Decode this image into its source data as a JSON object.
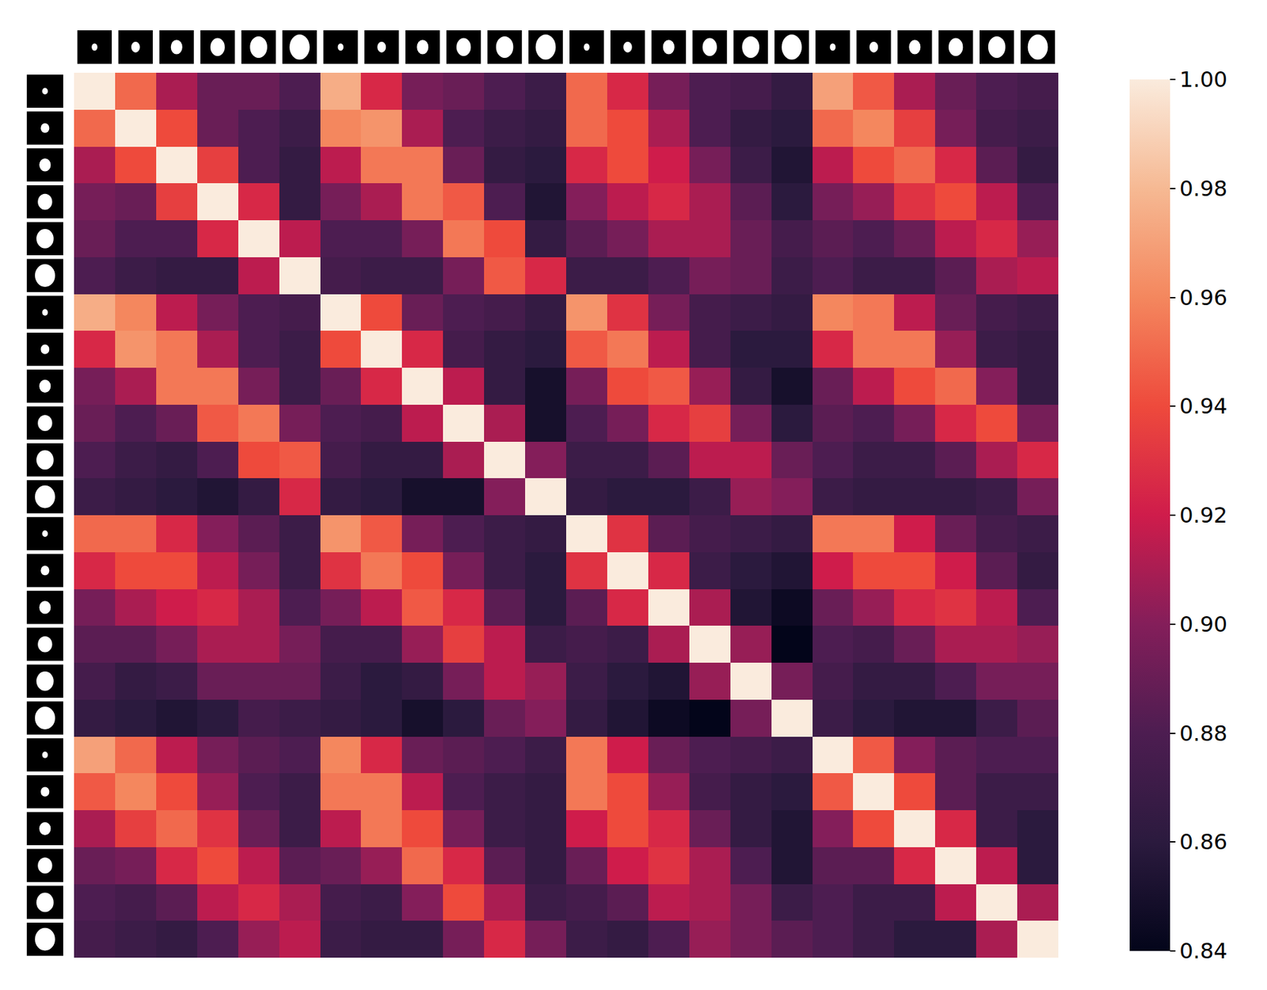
{
  "chart_data": {
    "type": "heatmap",
    "categories": [
      null,
      null,
      null,
      null,
      null,
      null,
      null,
      null,
      null,
      null,
      null,
      null,
      null,
      null,
      null,
      null,
      null,
      null,
      null,
      null,
      null,
      null,
      null,
      null
    ],
    "tick_labels": false,
    "zlim": [
      0.84,
      1.0
    ],
    "colorbar_ticks": [
      0.84,
      0.86,
      0.88,
      0.9,
      0.92,
      0.94,
      0.96,
      0.98,
      1.0
    ],
    "colorbar_tick_labels": [
      "0.84",
      "0.86",
      "0.88",
      "0.90",
      "0.92",
      "0.94",
      "0.96",
      "0.98",
      "1.00"
    ],
    "values": [
      [
        1.0,
        0.95,
        0.91,
        0.89,
        0.89,
        0.88,
        0.975,
        0.925,
        0.895,
        0.89,
        0.88,
        0.87,
        0.95,
        0.925,
        0.895,
        0.88,
        0.875,
        0.865,
        0.97,
        0.945,
        0.91,
        0.89,
        0.88,
        0.875
      ],
      [
        0.95,
        1.0,
        0.94,
        0.89,
        0.88,
        0.87,
        0.96,
        0.965,
        0.91,
        0.88,
        0.87,
        0.865,
        0.95,
        0.94,
        0.91,
        0.88,
        0.865,
        0.86,
        0.95,
        0.96,
        0.935,
        0.895,
        0.875,
        0.87
      ],
      [
        0.91,
        0.94,
        1.0,
        0.935,
        0.88,
        0.865,
        0.915,
        0.955,
        0.955,
        0.89,
        0.865,
        0.86,
        0.925,
        0.94,
        0.92,
        0.895,
        0.87,
        0.855,
        0.915,
        0.94,
        0.95,
        0.925,
        0.885,
        0.865
      ],
      [
        0.895,
        0.89,
        0.935,
        1.0,
        0.925,
        0.865,
        0.895,
        0.91,
        0.955,
        0.945,
        0.88,
        0.855,
        0.9,
        0.915,
        0.925,
        0.91,
        0.885,
        0.86,
        0.895,
        0.905,
        0.93,
        0.94,
        0.915,
        0.88
      ],
      [
        0.89,
        0.88,
        0.88,
        0.925,
        1.0,
        0.915,
        0.88,
        0.88,
        0.895,
        0.955,
        0.94,
        0.865,
        0.885,
        0.895,
        0.91,
        0.91,
        0.89,
        0.875,
        0.885,
        0.88,
        0.89,
        0.915,
        0.925,
        0.905
      ],
      [
        0.88,
        0.87,
        0.865,
        0.865,
        0.915,
        1.0,
        0.875,
        0.87,
        0.87,
        0.895,
        0.945,
        0.925,
        0.87,
        0.87,
        0.88,
        0.895,
        0.89,
        0.87,
        0.88,
        0.87,
        0.87,
        0.885,
        0.91,
        0.915
      ],
      [
        0.975,
        0.96,
        0.915,
        0.895,
        0.88,
        0.875,
        1.0,
        0.94,
        0.89,
        0.88,
        0.875,
        0.865,
        0.965,
        0.93,
        0.895,
        0.875,
        0.87,
        0.865,
        0.96,
        0.955,
        0.915,
        0.89,
        0.875,
        0.87
      ],
      [
        0.925,
        0.965,
        0.955,
        0.91,
        0.88,
        0.87,
        0.94,
        1.0,
        0.925,
        0.875,
        0.865,
        0.86,
        0.945,
        0.955,
        0.915,
        0.875,
        0.86,
        0.86,
        0.925,
        0.955,
        0.955,
        0.905,
        0.87,
        0.865
      ],
      [
        0.895,
        0.91,
        0.955,
        0.955,
        0.895,
        0.87,
        0.89,
        0.925,
        1.0,
        0.915,
        0.865,
        0.85,
        0.895,
        0.94,
        0.945,
        0.905,
        0.865,
        0.85,
        0.89,
        0.915,
        0.94,
        0.95,
        0.9,
        0.865
      ],
      [
        0.89,
        0.88,
        0.89,
        0.945,
        0.955,
        0.895,
        0.88,
        0.875,
        0.915,
        1.0,
        0.91,
        0.85,
        0.88,
        0.895,
        0.925,
        0.935,
        0.895,
        0.86,
        0.885,
        0.88,
        0.895,
        0.925,
        0.94,
        0.895
      ],
      [
        0.88,
        0.87,
        0.865,
        0.88,
        0.94,
        0.945,
        0.875,
        0.865,
        0.865,
        0.91,
        1.0,
        0.9,
        0.87,
        0.87,
        0.885,
        0.915,
        0.915,
        0.89,
        0.88,
        0.87,
        0.87,
        0.885,
        0.91,
        0.925
      ],
      [
        0.87,
        0.865,
        0.86,
        0.855,
        0.865,
        0.925,
        0.865,
        0.86,
        0.85,
        0.85,
        0.9,
        1.0,
        0.865,
        0.86,
        0.86,
        0.87,
        0.905,
        0.9,
        0.87,
        0.865,
        0.865,
        0.865,
        0.87,
        0.895
      ],
      [
        0.95,
        0.95,
        0.925,
        0.9,
        0.885,
        0.87,
        0.965,
        0.945,
        0.895,
        0.88,
        0.87,
        0.865,
        1.0,
        0.93,
        0.885,
        0.875,
        0.87,
        0.865,
        0.955,
        0.955,
        0.92,
        0.89,
        0.875,
        0.87
      ],
      [
        0.925,
        0.94,
        0.94,
        0.915,
        0.895,
        0.87,
        0.93,
        0.955,
        0.94,
        0.895,
        0.87,
        0.86,
        0.93,
        1.0,
        0.925,
        0.87,
        0.86,
        0.855,
        0.92,
        0.94,
        0.94,
        0.92,
        0.885,
        0.865
      ],
      [
        0.895,
        0.91,
        0.92,
        0.925,
        0.91,
        0.88,
        0.895,
        0.915,
        0.945,
        0.925,
        0.885,
        0.86,
        0.885,
        0.925,
        1.0,
        0.91,
        0.855,
        0.845,
        0.89,
        0.905,
        0.925,
        0.93,
        0.915,
        0.88
      ],
      [
        0.885,
        0.885,
        0.895,
        0.91,
        0.91,
        0.895,
        0.875,
        0.875,
        0.905,
        0.935,
        0.915,
        0.87,
        0.875,
        0.87,
        0.91,
        1.0,
        0.905,
        0.84,
        0.88,
        0.875,
        0.89,
        0.91,
        0.91,
        0.905
      ],
      [
        0.875,
        0.865,
        0.87,
        0.89,
        0.89,
        0.89,
        0.87,
        0.86,
        0.865,
        0.895,
        0.915,
        0.905,
        0.87,
        0.86,
        0.855,
        0.905,
        1.0,
        0.895,
        0.875,
        0.865,
        0.865,
        0.88,
        0.895,
        0.895
      ],
      [
        0.865,
        0.86,
        0.855,
        0.86,
        0.875,
        0.87,
        0.865,
        0.86,
        0.85,
        0.86,
        0.89,
        0.9,
        0.865,
        0.855,
        0.845,
        0.84,
        0.895,
        1.0,
        0.87,
        0.86,
        0.855,
        0.855,
        0.87,
        0.885
      ],
      [
        0.97,
        0.95,
        0.915,
        0.895,
        0.885,
        0.88,
        0.96,
        0.925,
        0.89,
        0.885,
        0.88,
        0.87,
        0.955,
        0.92,
        0.89,
        0.88,
        0.875,
        0.87,
        1.0,
        0.945,
        0.9,
        0.885,
        0.88,
        0.88
      ],
      [
        0.945,
        0.96,
        0.94,
        0.905,
        0.88,
        0.87,
        0.955,
        0.955,
        0.915,
        0.88,
        0.87,
        0.865,
        0.955,
        0.94,
        0.905,
        0.875,
        0.865,
        0.86,
        0.945,
        1.0,
        0.94,
        0.885,
        0.87,
        0.87
      ],
      [
        0.91,
        0.935,
        0.95,
        0.93,
        0.89,
        0.87,
        0.915,
        0.955,
        0.94,
        0.895,
        0.87,
        0.865,
        0.92,
        0.94,
        0.925,
        0.89,
        0.865,
        0.855,
        0.9,
        0.94,
        1.0,
        0.925,
        0.87,
        0.86
      ],
      [
        0.89,
        0.895,
        0.925,
        0.94,
        0.915,
        0.885,
        0.89,
        0.905,
        0.95,
        0.925,
        0.885,
        0.865,
        0.89,
        0.92,
        0.93,
        0.91,
        0.88,
        0.855,
        0.885,
        0.885,
        0.925,
        1.0,
        0.915,
        0.86
      ],
      [
        0.88,
        0.875,
        0.885,
        0.915,
        0.925,
        0.91,
        0.875,
        0.87,
        0.9,
        0.94,
        0.91,
        0.87,
        0.875,
        0.885,
        0.915,
        0.91,
        0.895,
        0.87,
        0.88,
        0.87,
        0.87,
        0.915,
        1.0,
        0.91
      ],
      [
        0.875,
        0.87,
        0.865,
        0.88,
        0.905,
        0.915,
        0.87,
        0.865,
        0.865,
        0.895,
        0.925,
        0.895,
        0.87,
        0.865,
        0.88,
        0.905,
        0.895,
        0.885,
        0.88,
        0.87,
        0.86,
        0.86,
        0.91,
        1.0
      ]
    ]
  }
}
